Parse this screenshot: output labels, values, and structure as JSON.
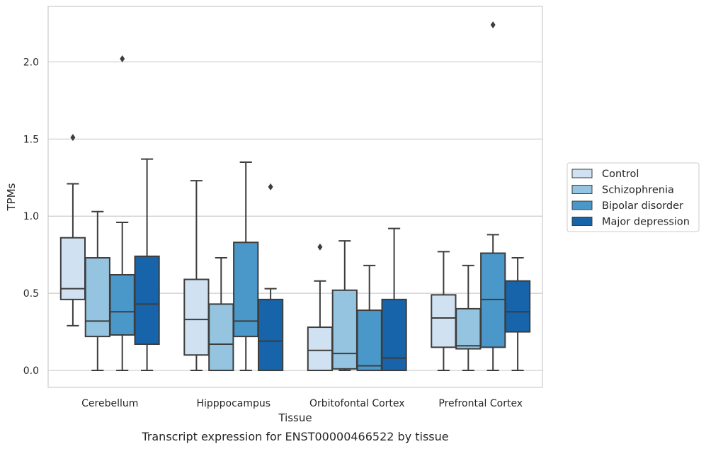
{
  "chart_data": {
    "type": "boxplot",
    "xlabel": "Tissue",
    "ylabel": "TPMs",
    "caption": "Transcript expression for ENST00000466522 by tissue",
    "ylim": [
      -0.11,
      2.36
    ],
    "yticks": [
      0.0,
      0.5,
      1.0,
      1.5,
      2.0
    ],
    "ytick_labels": [
      "0.0",
      "0.5",
      "1.0",
      "1.5",
      "2.0"
    ],
    "grid": "horizontal",
    "legend_position": "right",
    "categories": [
      "Cerebellum",
      "Hipppocampus",
      "Orbitofontal Cortex",
      "Prefrontal Cortex"
    ],
    "series": [
      {
        "name": "Control",
        "color": "#d0e1f2",
        "boxes": [
          {
            "whislo": 0.29,
            "q1": 0.46,
            "med": 0.53,
            "q3": 0.86,
            "whishi": 1.21,
            "fliers": [
              1.51
            ]
          },
          {
            "whislo": 0.0,
            "q1": 0.1,
            "med": 0.33,
            "q3": 0.59,
            "whishi": 1.23,
            "fliers": []
          },
          {
            "whislo": 0.0,
            "q1": 0.0,
            "med": 0.13,
            "q3": 0.28,
            "whishi": 0.58,
            "fliers": [
              0.8
            ]
          },
          {
            "whislo": 0.0,
            "q1": 0.15,
            "med": 0.34,
            "q3": 0.49,
            "whishi": 0.77,
            "fliers": []
          }
        ]
      },
      {
        "name": "Schizophrenia",
        "color": "#94c4df",
        "boxes": [
          {
            "whislo": 0.0,
            "q1": 0.22,
            "med": 0.32,
            "q3": 0.73,
            "whishi": 1.03,
            "fliers": []
          },
          {
            "whislo": 0.0,
            "q1": 0.0,
            "med": 0.17,
            "q3": 0.43,
            "whishi": 0.73,
            "fliers": []
          },
          {
            "whislo": 0.0,
            "q1": 0.01,
            "med": 0.11,
            "q3": 0.52,
            "whishi": 0.84,
            "fliers": []
          },
          {
            "whislo": 0.0,
            "q1": 0.14,
            "med": 0.16,
            "q3": 0.4,
            "whishi": 0.68,
            "fliers": []
          }
        ]
      },
      {
        "name": "Bipolar disorder",
        "color": "#4a98c9",
        "boxes": [
          {
            "whislo": 0.0,
            "q1": 0.23,
            "med": 0.38,
            "q3": 0.62,
            "whishi": 0.96,
            "fliers": [
              2.02
            ]
          },
          {
            "whislo": 0.0,
            "q1": 0.22,
            "med": 0.32,
            "q3": 0.83,
            "whishi": 1.35,
            "fliers": []
          },
          {
            "whislo": 0.0,
            "q1": 0.0,
            "med": 0.03,
            "q3": 0.39,
            "whishi": 0.68,
            "fliers": []
          },
          {
            "whislo": 0.0,
            "q1": 0.15,
            "med": 0.46,
            "q3": 0.76,
            "whishi": 0.88,
            "fliers": [
              2.24
            ]
          }
        ]
      },
      {
        "name": "Major depression",
        "color": "#1764ab",
        "boxes": [
          {
            "whislo": 0.0,
            "q1": 0.17,
            "med": 0.43,
            "q3": 0.74,
            "whishi": 1.37,
            "fliers": []
          },
          {
            "whislo": 0.0,
            "q1": 0.0,
            "med": 0.19,
            "q3": 0.46,
            "whishi": 0.53,
            "fliers": [
              1.19
            ]
          },
          {
            "whislo": 0.0,
            "q1": 0.0,
            "med": 0.08,
            "q3": 0.46,
            "whishi": 0.92,
            "fliers": []
          },
          {
            "whislo": 0.0,
            "q1": 0.25,
            "med": 0.38,
            "q3": 0.58,
            "whishi": 0.73,
            "fliers": []
          }
        ]
      }
    ]
  }
}
